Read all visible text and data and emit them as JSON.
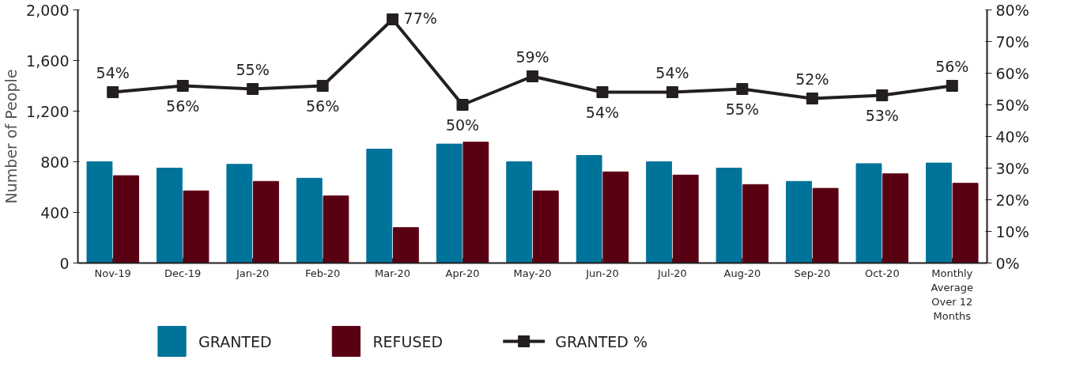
{
  "chart_data": {
    "type": "bar",
    "ylabel": "Number of People",
    "categories": [
      "Nov-19",
      "Dec-19",
      "Jan-20",
      "Feb-20",
      "Mar-20",
      "Apr-20",
      "May-20",
      "Jun-20",
      "Jul-20",
      "Aug-20",
      "Sep-20",
      "Oct-20",
      "Monthly Average Over 12 Months"
    ],
    "series": [
      {
        "name": "GRANTED",
        "color": "#00739a",
        "values": [
          800,
          750,
          780,
          670,
          900,
          940,
          800,
          850,
          800,
          750,
          645,
          785,
          790
        ]
      },
      {
        "name": "REFUSED",
        "color": "#5a0013",
        "values": [
          690,
          570,
          645,
          530,
          280,
          955,
          570,
          720,
          695,
          620,
          590,
          705,
          630
        ]
      },
      {
        "name": "GRANTED %",
        "type": "line",
        "axis": "y2",
        "color": "#231f20",
        "marker": "square",
        "values": [
          54,
          56,
          55,
          56,
          77,
          50,
          59,
          54,
          54,
          55,
          52,
          53,
          56
        ],
        "value_labels": [
          "54%",
          "56%",
          "55%",
          "56%",
          "77%",
          "50%",
          "59%",
          "54%",
          "54%",
          "55%",
          "52%",
          "53%",
          "56%"
        ]
      }
    ],
    "ylim": [
      0,
      2000
    ],
    "yticks": [
      {
        "value": 0,
        "label": "0"
      },
      {
        "value": 400,
        "label": "400"
      },
      {
        "value": 800,
        "label": "800"
      },
      {
        "value": 1200,
        "label": "1,200"
      },
      {
        "value": 1600,
        "label": "1,600"
      },
      {
        "value": 2000,
        "label": "2,000"
      }
    ],
    "y2lim": [
      0,
      80
    ],
    "y2ticks": [
      {
        "value": 0,
        "label": "0%"
      },
      {
        "value": 10,
        "label": "10%"
      },
      {
        "value": 20,
        "label": "20%"
      },
      {
        "value": 30,
        "label": "30%"
      },
      {
        "value": 40,
        "label": "40%"
      },
      {
        "value": 50,
        "label": "50%"
      },
      {
        "value": 60,
        "label": "60%"
      },
      {
        "value": 70,
        "label": "70%"
      },
      {
        "value": 80,
        "label": "80%"
      }
    ],
    "grid": false,
    "legend": "bottom"
  }
}
